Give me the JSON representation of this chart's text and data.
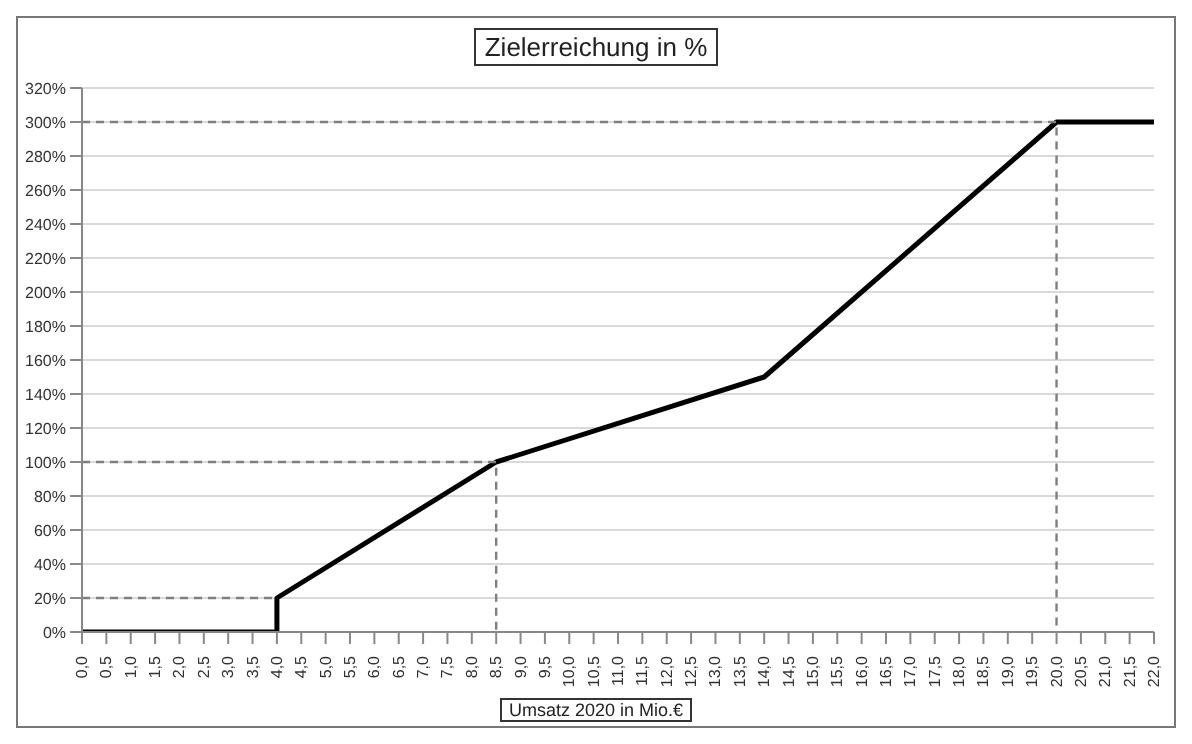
{
  "chart_data": {
    "type": "line",
    "title": "Zielerreichung in %",
    "xlabel": "Umsatz 2020 in Mio.€",
    "series": [
      {
        "color": "#000000",
        "x": [
          0,
          4,
          4,
          8.5,
          14,
          20,
          22
        ],
        "values": [
          0,
          0,
          20,
          100,
          150,
          300,
          300
        ]
      },
      {
        "color": "#7f7f7f",
        "line_style": "dashed",
        "x": [
          0,
          4
        ],
        "values": [
          20,
          20
        ]
      },
      {
        "color": "#7f7f7f",
        "line_style": "dashed",
        "x": [
          0,
          8.5,
          8.5
        ],
        "values": [
          100,
          100,
          0
        ]
      },
      {
        "color": "#7f7f7f",
        "line_style": "dashed",
        "x": [
          0,
          20,
          20
        ],
        "values": [
          300,
          300,
          0
        ]
      }
    ],
    "xlim": [
      0,
      22
    ],
    "xticks": [
      {
        "value": 0,
        "label": "0,0"
      },
      {
        "value": 0.5,
        "label": "0,5"
      },
      {
        "value": 1,
        "label": "1,0"
      },
      {
        "value": 1.5,
        "label": "1,5"
      },
      {
        "value": 2,
        "label": "2,0"
      },
      {
        "value": 2.5,
        "label": "2,5"
      },
      {
        "value": 3,
        "label": "3,0"
      },
      {
        "value": 3.5,
        "label": "3,5"
      },
      {
        "value": 4,
        "label": "4,0"
      },
      {
        "value": 4.5,
        "label": "4,5"
      },
      {
        "value": 5,
        "label": "5,0"
      },
      {
        "value": 5.5,
        "label": "5,5"
      },
      {
        "value": 6,
        "label": "6,0"
      },
      {
        "value": 6.5,
        "label": "6,5"
      },
      {
        "value": 7,
        "label": "7,0"
      },
      {
        "value": 7.5,
        "label": "7,5"
      },
      {
        "value": 8,
        "label": "8,0"
      },
      {
        "value": 8.5,
        "label": "8,5"
      },
      {
        "value": 9,
        "label": "9,0"
      },
      {
        "value": 9.5,
        "label": "9,5"
      },
      {
        "value": 10,
        "label": "10,0"
      },
      {
        "value": 10.5,
        "label": "10,5"
      },
      {
        "value": 11,
        "label": "11,0"
      },
      {
        "value": 11.5,
        "label": "11,5"
      },
      {
        "value": 12,
        "label": "12,0"
      },
      {
        "value": 12.5,
        "label": "12,5"
      },
      {
        "value": 13,
        "label": "13,0"
      },
      {
        "value": 13.5,
        "label": "13,5"
      },
      {
        "value": 14,
        "label": "14,0"
      },
      {
        "value": 14.5,
        "label": "14,5"
      },
      {
        "value": 15,
        "label": "15,0"
      },
      {
        "value": 15.5,
        "label": "15,5"
      },
      {
        "value": 16,
        "label": "16,0"
      },
      {
        "value": 16.5,
        "label": "16,5"
      },
      {
        "value": 17,
        "label": "17,0"
      },
      {
        "value": 17.5,
        "label": "17,5"
      },
      {
        "value": 18,
        "label": "18,0"
      },
      {
        "value": 18.5,
        "label": "18,5"
      },
      {
        "value": 19,
        "label": "19,0"
      },
      {
        "value": 19.5,
        "label": "19,5"
      },
      {
        "value": 20,
        "label": "20,0"
      },
      {
        "value": 20.5,
        "label": "20,5"
      },
      {
        "value": 21,
        "label": "21,0"
      },
      {
        "value": 21.5,
        "label": "21,5"
      },
      {
        "value": 22,
        "label": "22,0"
      }
    ],
    "ylim": [
      0,
      320
    ],
    "yticks": [
      {
        "value": 0,
        "label": "0%"
      },
      {
        "value": 20,
        "label": "20%"
      },
      {
        "value": 40,
        "label": "40%"
      },
      {
        "value": 60,
        "label": "60%"
      },
      {
        "value": 80,
        "label": "80%"
      },
      {
        "value": 100,
        "label": "100%"
      },
      {
        "value": 120,
        "label": "120%"
      },
      {
        "value": 140,
        "label": "140%"
      },
      {
        "value": 160,
        "label": "160%"
      },
      {
        "value": 180,
        "label": "180%"
      },
      {
        "value": 200,
        "label": "200%"
      },
      {
        "value": 220,
        "label": "220%"
      },
      {
        "value": 240,
        "label": "240%"
      },
      {
        "value": 260,
        "label": "260%"
      },
      {
        "value": 280,
        "label": "280%"
      },
      {
        "value": 300,
        "label": "300%"
      },
      {
        "value": 320,
        "label": "320%"
      }
    ],
    "grid": "y",
    "marker": "none"
  }
}
